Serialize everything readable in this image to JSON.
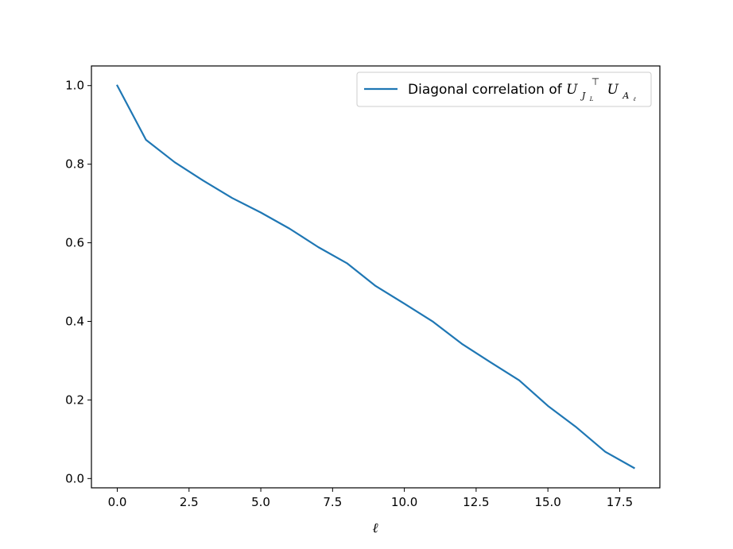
{
  "chart_data": {
    "type": "line",
    "xlabel": "ℓ",
    "ylabel": "",
    "xlim": [
      -0.9,
      18.9
    ],
    "ylim": [
      -0.0236,
      1.05
    ],
    "xticks": [
      0.0,
      2.5,
      5.0,
      7.5,
      10.0,
      12.5,
      15.0,
      17.5
    ],
    "xtick_labels": [
      "0.0",
      "2.5",
      "5.0",
      "7.5",
      "10.0",
      "12.5",
      "15.0",
      "17.5"
    ],
    "yticks": [
      0.0,
      0.2,
      0.4,
      0.6,
      0.8,
      1.0
    ],
    "ytick_labels": [
      "0.0",
      "0.2",
      "0.4",
      "0.6",
      "0.8",
      "1.0"
    ],
    "grid": false,
    "legend_position": "top-right",
    "series": [
      {
        "name": "Diagonal correlation of U_{J_L}^⊤ U_{A_ℓ}",
        "color": "#1f77b4",
        "x": [
          0,
          1,
          2,
          3,
          4,
          5,
          6,
          7,
          8,
          9,
          10,
          11,
          12,
          13,
          14,
          15,
          16,
          17,
          18
        ],
        "y": [
          1.0,
          0.862,
          0.805,
          0.758,
          0.714,
          0.677,
          0.636,
          0.589,
          0.548,
          0.49,
          0.445,
          0.399,
          0.343,
          0.296,
          0.25,
          0.185,
          0.13,
          0.068,
          0.027
        ]
      }
    ]
  },
  "legend": {
    "prefix": "Diagonal correlation of ",
    "m1": "U",
    "m1_sub": "J",
    "m1_subsub": "L",
    "m1_sup": "⊤",
    "m2": "U",
    "m2_sub": "A",
    "m2_subsub": "ℓ"
  }
}
